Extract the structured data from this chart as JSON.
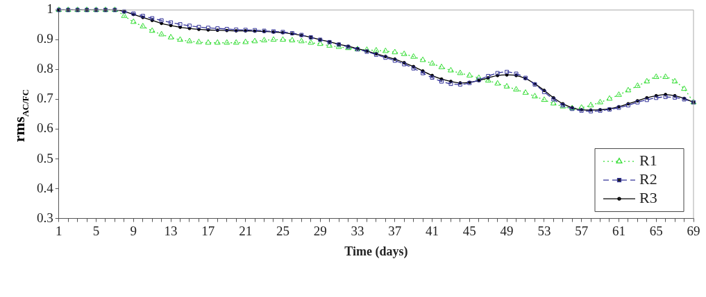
{
  "chart_data": {
    "type": "line",
    "xlabel": "Time (days)",
    "ylabel": "rms$_{AC/FC}$",
    "categories": [
      "1",
      null,
      null,
      null,
      "5",
      null,
      null,
      null,
      "9",
      null,
      null,
      null,
      "13",
      null,
      null,
      null,
      "17",
      null,
      null,
      null,
      "21",
      null,
      null,
      null,
      "25",
      null,
      null,
      null,
      "29",
      null,
      null,
      null,
      "33",
      null,
      null,
      null,
      "37",
      null,
      null,
      null,
      "41",
      null,
      null,
      null,
      "45",
      null,
      null,
      null,
      "49",
      null,
      null,
      null,
      "53",
      null,
      null,
      null,
      "57",
      null,
      null,
      null,
      "61",
      null,
      null,
      null,
      "65",
      null,
      null,
      null,
      "69"
    ],
    "series": [
      {
        "name": "R1",
        "color": "#33dd33",
        "marker": "triangle",
        "line_style": "dotted",
        "values": [
          1,
          1,
          1,
          1,
          1,
          1,
          1,
          0.98,
          0.96,
          0.945,
          0.93,
          0.918,
          0.908,
          0.9,
          0.895,
          0.892,
          0.89,
          0.89,
          0.89,
          0.89,
          0.892,
          0.895,
          0.898,
          0.9,
          0.9,
          0.898,
          0.895,
          0.89,
          0.886,
          0.88,
          0.876,
          0.872,
          0.868,
          0.866,
          0.864,
          0.862,
          0.858,
          0.852,
          0.843,
          0.832,
          0.82,
          0.808,
          0.797,
          0.788,
          0.78,
          0.772,
          0.763,
          0.753,
          0.743,
          0.733,
          0.722,
          0.71,
          0.698,
          0.686,
          0.676,
          0.67,
          0.672,
          0.68,
          0.69,
          0.702,
          0.715,
          0.73,
          0.745,
          0.76,
          0.775,
          0.775,
          0.76,
          0.735,
          0.69
        ]
      },
      {
        "name": "R2",
        "color": "#333399",
        "marker": "square",
        "line_style": "dashed",
        "values": [
          1,
          1,
          1,
          1,
          1,
          1,
          1,
          0.995,
          0.988,
          0.98,
          0.972,
          0.965,
          0.958,
          0.952,
          0.947,
          0.943,
          0.94,
          0.938,
          0.936,
          0.934,
          0.933,
          0.932,
          0.93,
          0.928,
          0.926,
          0.922,
          0.916,
          0.908,
          0.9,
          0.892,
          0.884,
          0.876,
          0.868,
          0.86,
          0.85,
          0.84,
          0.83,
          0.818,
          0.804,
          0.788,
          0.773,
          0.76,
          0.752,
          0.75,
          0.755,
          0.765,
          0.778,
          0.788,
          0.792,
          0.786,
          0.772,
          0.75,
          0.725,
          0.7,
          0.68,
          0.668,
          0.662,
          0.66,
          0.662,
          0.666,
          0.672,
          0.68,
          0.69,
          0.698,
          0.705,
          0.708,
          0.706,
          0.7,
          0.69
        ]
      },
      {
        "name": "R3",
        "color": "#000000",
        "marker": "circle",
        "line_style": "solid",
        "values": [
          1,
          1,
          1,
          1,
          1,
          1,
          1,
          0.995,
          0.985,
          0.975,
          0.965,
          0.955,
          0.948,
          0.942,
          0.938,
          0.935,
          0.933,
          0.932,
          0.931,
          0.93,
          0.93,
          0.929,
          0.928,
          0.926,
          0.924,
          0.92,
          0.915,
          0.908,
          0.9,
          0.893,
          0.885,
          0.878,
          0.87,
          0.862,
          0.853,
          0.844,
          0.835,
          0.823,
          0.81,
          0.795,
          0.78,
          0.768,
          0.76,
          0.755,
          0.757,
          0.763,
          0.772,
          0.78,
          0.782,
          0.78,
          0.77,
          0.752,
          0.73,
          0.705,
          0.685,
          0.672,
          0.665,
          0.664,
          0.665,
          0.668,
          0.675,
          0.685,
          0.695,
          0.705,
          0.712,
          0.716,
          0.712,
          0.703,
          0.69
        ]
      }
    ],
    "ylim": [
      0.3,
      1
    ],
    "yticks": [
      0.3,
      0.4,
      0.5,
      0.6,
      0.7,
      0.8,
      0.9,
      1
    ],
    "legend": "bottom right"
  }
}
